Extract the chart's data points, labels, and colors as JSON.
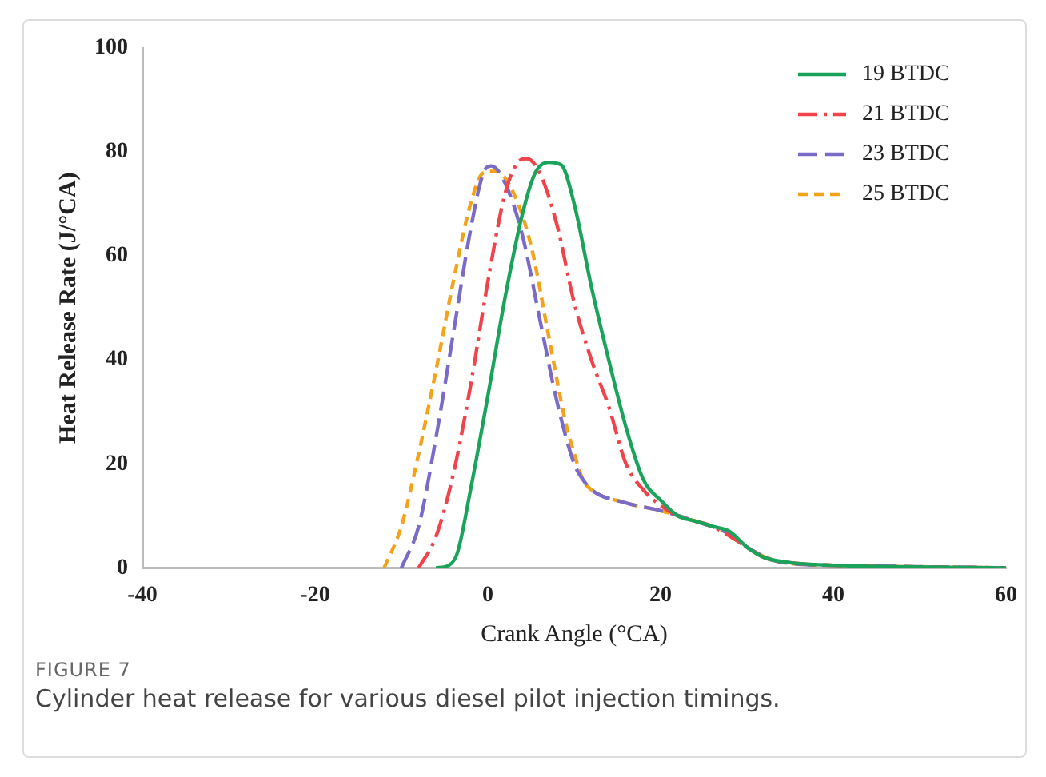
{
  "chart_data": {
    "type": "line",
    "xlabel": "Crank Angle (°CA)",
    "ylabel": "Heat Release Rate (J/°CA)",
    "xlim": [
      -40,
      60
    ],
    "xticks": [
      -40,
      -20,
      0,
      20,
      40,
      60
    ],
    "ylim": [
      0,
      100
    ],
    "yticks": [
      0,
      20,
      40,
      60,
      80,
      100
    ],
    "grid": false,
    "legend": "top right",
    "marker": "none",
    "annotations": [
      "FIGURE 7",
      "Cylinder heat release for various diesel pilot injection timings."
    ],
    "series": [
      {
        "name": "19 BTDC",
        "color": "#1aa35a",
        "line_style": "solid",
        "x": [
          -6,
          -4.5,
          -3.5,
          -2,
          0,
          2,
          4,
          5.5,
          7,
          8.5,
          10,
          12,
          14,
          16,
          18,
          20,
          22,
          24,
          26,
          28,
          30,
          32,
          35,
          40,
          60
        ],
        "values": [
          0,
          0.5,
          3,
          15,
          33,
          52,
          68,
          76,
          78,
          77.5,
          70,
          54,
          40,
          27,
          17,
          13,
          10,
          9,
          8,
          7,
          4,
          2,
          1,
          0.5,
          0
        ]
      },
      {
        "name": "21 BTDC",
        "color": "#f0434a",
        "line_style": "dashdot",
        "x": [
          -8,
          -6,
          -4,
          -2,
          0,
          2,
          3.5,
          4.5,
          6,
          8,
          10,
          12,
          14,
          16,
          18,
          20,
          22,
          26,
          30,
          32,
          35,
          40,
          60
        ],
        "values": [
          0,
          6,
          18,
          35,
          55,
          72,
          78,
          78.7,
          76,
          66,
          51,
          40,
          31,
          20,
          15,
          12,
          10,
          8,
          4,
          2,
          1,
          0.5,
          0
        ]
      },
      {
        "name": "23 BTDC",
        "color": "#7b6bc9",
        "line_style": "dashed",
        "x": [
          -10,
          -8,
          -6,
          -4,
          -2,
          -0.5,
          0.4,
          2,
          4,
          6,
          8,
          10,
          11,
          12,
          16,
          20,
          24,
          28,
          30,
          33,
          36,
          40,
          60
        ],
        "values": [
          0,
          8,
          25,
          45,
          65,
          76,
          77.3,
          74,
          64,
          48,
          32,
          20,
          17,
          15,
          12.5,
          11,
          9,
          6.5,
          4,
          1.5,
          0.7,
          0.5,
          0
        ]
      },
      {
        "name": "25 BTDC",
        "color": "#f5a21b",
        "line_style": "dotted",
        "x": [
          -12,
          -10,
          -8,
          -6,
          -4,
          -2,
          -0.5,
          1,
          3,
          5,
          7,
          9,
          10,
          11,
          12,
          16,
          20,
          24,
          28,
          30,
          33,
          36,
          40,
          60
        ],
        "values": [
          0,
          8,
          22,
          38,
          55,
          70,
          76,
          76.3,
          72,
          62,
          45,
          28,
          22,
          17,
          15,
          12.5,
          11,
          9,
          6.5,
          4,
          1.5,
          0.7,
          0.5,
          0
        ]
      }
    ]
  }
}
